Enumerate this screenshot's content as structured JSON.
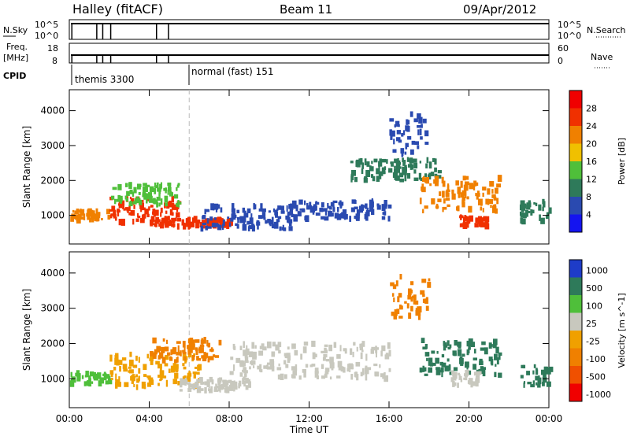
{
  "header": {
    "station": "Halley (fitACF)",
    "beam": "Beam 11",
    "date": "09/Apr/2012"
  },
  "status_panels": {
    "nsky_label": "N.Sky",
    "nsearch_label": "N.Search",
    "freq_label_top": "Freq.",
    "freq_label_unit": "[MHz]",
    "nave_label": "Nave",
    "cpid_label": "CPID",
    "left_ticks_top": [
      "10^5",
      "10^0"
    ],
    "right_ticks_top": [
      "10^5",
      "10^0"
    ],
    "left_ticks_freq": [
      "18",
      "8"
    ],
    "right_ticks_nave": [
      "60",
      "0"
    ],
    "cpid_segments": [
      {
        "label": "themis 3300",
        "start_hour": 0
      },
      {
        "label": "normal (fast) 151",
        "start_hour": 6
      }
    ]
  },
  "chart_data": [
    {
      "type": "heatmap",
      "title": "Power",
      "ylabel": "Slant Range [km]",
      "xlabel": "",
      "x_ticks": [
        "00:00",
        "04:00",
        "08:00",
        "12:00",
        "16:00",
        "20:00",
        "00:00"
      ],
      "xlim_hours": [
        0,
        24
      ],
      "y_ticks": [
        1000,
        2000,
        3000,
        4000
      ],
      "ylim": [
        180,
        4600
      ],
      "colorbar": {
        "label": "Power [dB]",
        "ticks": [
          "4",
          "8",
          "12",
          "16",
          "20",
          "24",
          "28"
        ],
        "colors": [
          "#1414f0",
          "#2a4ab0",
          "#2e7a5a",
          "#4fbf3a",
          "#f0c000",
          "#f08000",
          "#f03000",
          "#f00000"
        ]
      },
      "scatter_regions": [
        {
          "x0": 0.0,
          "x1": 2.0,
          "y0": 850,
          "y1": 1150,
          "color": "#f08000"
        },
        {
          "x0": 2.0,
          "x1": 5.5,
          "y0": 800,
          "y1": 1500,
          "color": "#f03000"
        },
        {
          "x0": 2.0,
          "x1": 5.5,
          "y0": 1300,
          "y1": 1900,
          "color": "#4fbf3a"
        },
        {
          "x0": 4.0,
          "x1": 8.0,
          "y0": 680,
          "y1": 900,
          "color": "#f03000"
        },
        {
          "x0": 6.5,
          "x1": 11.0,
          "y0": 600,
          "y1": 1300,
          "color": "#2a4ab0"
        },
        {
          "x0": 11.0,
          "x1": 16.0,
          "y0": 900,
          "y1": 1400,
          "color": "#2a4ab0"
        },
        {
          "x0": 14.0,
          "x1": 18.5,
          "y0": 2000,
          "y1": 2600,
          "color": "#2e7a5a"
        },
        {
          "x0": 16.0,
          "x1": 18.0,
          "y0": 2700,
          "y1": 3900,
          "color": "#2a4ab0"
        },
        {
          "x0": 17.5,
          "x1": 21.5,
          "y0": 1100,
          "y1": 2100,
          "color": "#f08000"
        },
        {
          "x0": 19.5,
          "x1": 21.0,
          "y0": 650,
          "y1": 1000,
          "color": "#f03000"
        },
        {
          "x0": 22.5,
          "x1": 24.0,
          "y0": 800,
          "y1": 1400,
          "color": "#2e7a5a"
        }
      ]
    },
    {
      "type": "heatmap",
      "title": "Velocity",
      "ylabel": "Slant Range [km]",
      "xlabel": "Time UT",
      "x_ticks": [
        "00:00",
        "04:00",
        "08:00",
        "12:00",
        "16:00",
        "20:00",
        "00:00"
      ],
      "xlim_hours": [
        0,
        24
      ],
      "y_ticks": [
        1000,
        2000,
        3000,
        4000
      ],
      "ylim": [
        180,
        4600
      ],
      "colorbar": {
        "label": "Velocity [m s^-1]",
        "ticks": [
          "1000",
          "500",
          "100",
          "25",
          "-25",
          "-100",
          "-500",
          "-1000"
        ],
        "colors": [
          "#1e3cc8",
          "#2e7a5a",
          "#4fbf3a",
          "#c8c8be",
          "#f0a000",
          "#f08000",
          "#f05000",
          "#f00000"
        ]
      },
      "scatter_regions": [
        {
          "x0": 0.0,
          "x1": 2.0,
          "y0": 850,
          "y1": 1150,
          "color": "#4fbf3a"
        },
        {
          "x0": 2.0,
          "x1": 6.5,
          "y0": 750,
          "y1": 1700,
          "color": "#f0a000"
        },
        {
          "x0": 4.0,
          "x1": 7.5,
          "y0": 1500,
          "y1": 2100,
          "color": "#f08000"
        },
        {
          "x0": 5.5,
          "x1": 9.0,
          "y0": 650,
          "y1": 1000,
          "color": "#c8c8be"
        },
        {
          "x0": 8.0,
          "x1": 16.0,
          "y0": 1000,
          "y1": 2000,
          "color": "#c8c8be"
        },
        {
          "x0": 16.0,
          "x1": 18.0,
          "y0": 2700,
          "y1": 3900,
          "color": "#f08000"
        },
        {
          "x0": 17.5,
          "x1": 21.5,
          "y0": 1100,
          "y1": 2100,
          "color": "#2e7a5a"
        },
        {
          "x0": 19.0,
          "x1": 20.5,
          "y0": 800,
          "y1": 1200,
          "color": "#c8c8be"
        },
        {
          "x0": 22.5,
          "x1": 24.0,
          "y0": 800,
          "y1": 1400,
          "color": "#2e7a5a"
        }
      ]
    }
  ]
}
